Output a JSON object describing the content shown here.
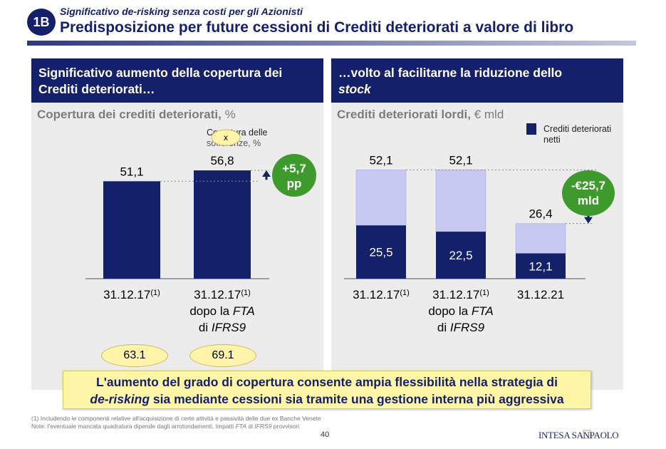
{
  "header": {
    "badge": "1B",
    "subtitle": "Significativo de-risking senza costi per gli Azionisti",
    "title": "Predisposizione per future cessioni di Crediti deteriorati a valore di libro"
  },
  "left_panel": {
    "heading_line1": "Significativo aumento della copertura dei",
    "heading_line2": "Crediti deteriorati…",
    "caption": "Copertura dei crediti deteriorati,",
    "caption_unit": " %",
    "legend_marker": "x",
    "legend_line1": "Copertura delle",
    "legend_line2": "sofferenze, %",
    "delta_line1": "+5,7",
    "delta_line2": "pp",
    "cat_main": [
      "31.12.17",
      "31.12.17"
    ],
    "cat_sup": [
      "(1)",
      "(1)"
    ],
    "cat_line2_pre": "dopo la ",
    "cat_line2_it": "FTA",
    "cat_line3_pre": "di ",
    "cat_line3_it": "IFRS9",
    "sofferenze": [
      "63.1",
      "69.1"
    ]
  },
  "right_panel": {
    "heading_line1": "…volto al facilitarne la riduzione dello",
    "heading_line2_it": "stock",
    "caption": "Crediti deteriorati lordi,",
    "caption_unit": " € mld",
    "legend_line1": "Crediti deteriorati",
    "legend_line2": "netti",
    "delta_line1": "-€25,7",
    "delta_line2": "mld",
    "cat_main": [
      "31.12.17",
      "31.12.17",
      "31.12.21"
    ],
    "cat_sup": [
      "(1)",
      "(1)",
      ""
    ],
    "cat_line2_pre": "dopo la ",
    "cat_line2_it": "FTA",
    "cat_line3_pre": "di ",
    "cat_line3_it": "IFRS9"
  },
  "chart_data": [
    {
      "type": "bar",
      "title": "Copertura dei crediti deteriorati, %",
      "categories": [
        "31.12.17(1)",
        "31.12.17(1) dopo la FTA di IFRS9"
      ],
      "values": [
        51.1,
        56.8
      ],
      "labels": [
        "51,1",
        "56,8"
      ],
      "secondary": {
        "name": "Copertura delle sofferenze, %",
        "values": [
          63.1,
          69.1
        ]
      },
      "ylim": [
        0,
        60
      ],
      "color": "#15206b"
    },
    {
      "type": "bar",
      "stacked": true,
      "title": "Crediti deteriorati lordi, € mld",
      "categories": [
        "31.12.17(1)",
        "31.12.17(1) dopo la FTA di IFRS9",
        "31.12.21"
      ],
      "series": [
        {
          "name": "Crediti deteriorati netti",
          "values": [
            25.5,
            22.5,
            12.1
          ],
          "labels": [
            "25,5",
            "22,5",
            "12,1"
          ],
          "color": "#15206b"
        }
      ],
      "totals": [
        52.1,
        52.1,
        26.4
      ],
      "total_labels": [
        "52,1",
        "52,1",
        "26,4"
      ],
      "remainder_color": "#c7c9f2",
      "ylim": [
        0,
        60
      ]
    }
  ],
  "colors": {
    "navy": "#15206b",
    "green": "#3e9a2d",
    "yellow": "#fff6a8"
  },
  "note": {
    "line1": "L'aumento del grado di copertura consente ampia flessibilità nella strategia di",
    "line2_it": "de-risking",
    "line2_rest": " sia mediante cessioni sia tramite una gestione interna più aggressiva"
  },
  "footnotes": {
    "f1": "(1)  Includendo le componenti relative all'acquisizione di certe attività e passività delle due ex Banche Venete",
    "f2_pre": "Note: l'eventuale mancata quadratura dipende dagli arrotondamenti. Impatti ",
    "f2_it1": "FTA",
    "f2_mid": " di ",
    "f2_it2": "IFRS9",
    "f2_post": " provvisori"
  },
  "page_number": "40",
  "logo_text": "INTESA SANPAOLO"
}
